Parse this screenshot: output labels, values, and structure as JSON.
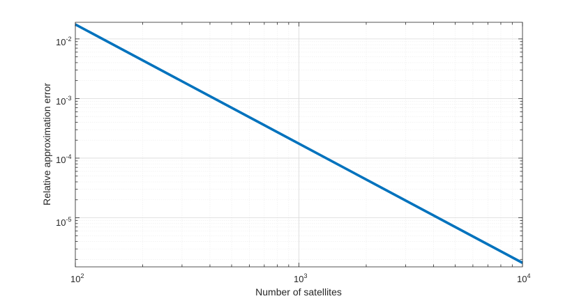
{
  "chart_data": {
    "type": "line",
    "title": "",
    "xlabel": "Number of satellites",
    "ylabel": "Relative approximation error",
    "x_scale": "log",
    "y_scale": "log",
    "xlim": [
      100,
      10000
    ],
    "ylim": [
      1.5e-06,
      0.019
    ],
    "grid": true,
    "minor_grid": true,
    "legend": "none",
    "line_color": "#0072BD",
    "x_ticks": [
      {
        "base": "10",
        "exp": "2"
      },
      {
        "base": "10",
        "exp": "3"
      },
      {
        "base": "10",
        "exp": "4"
      }
    ],
    "y_ticks": [
      {
        "base": "10",
        "exp": "-2"
      },
      {
        "base": "10",
        "exp": "-3"
      },
      {
        "base": "10",
        "exp": "-4"
      },
      {
        "base": "10",
        "exp": "-5"
      }
    ],
    "series": [
      {
        "x": [
          100,
          10000
        ],
        "y": [
          0.0175,
          1.75e-06
        ]
      }
    ]
  }
}
